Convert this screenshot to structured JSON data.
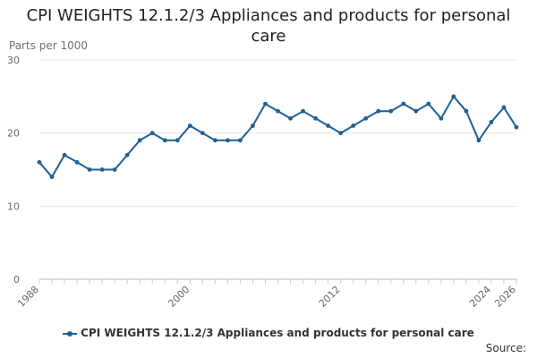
{
  "title": "CPI WEIGHTS 12.1.2/3 Appliances and products for personal care",
  "unit_label": "Parts per 1000",
  "legend_label": "CPI WEIGHTS 12.1.2/3 Appliances and products for personal care",
  "source_label": "Source:",
  "series_color": "#206095",
  "chart_data": {
    "type": "line",
    "title": "CPI WEIGHTS 12.1.2/3 Appliances and products for personal care",
    "ylabel": "Parts per 1000",
    "xlabel": "",
    "ylim": [
      0,
      30
    ],
    "yticks": [
      0,
      10,
      20,
      30
    ],
    "xlim": [
      1988,
      2026
    ],
    "xticks": [
      1988,
      2000,
      2012,
      2024,
      2026
    ],
    "grid": true,
    "series": [
      {
        "name": "CPI WEIGHTS 12.1.2/3 Appliances and products for personal care",
        "x": [
          1988,
          1989,
          1990,
          1991,
          1992,
          1993,
          1994,
          1995,
          1996,
          1997,
          1998,
          1999,
          2000,
          2001,
          2002,
          2003,
          2004,
          2005,
          2006,
          2007,
          2008,
          2009,
          2010,
          2011,
          2012,
          2013,
          2014,
          2015,
          2016,
          2017,
          2018,
          2019,
          2020,
          2021,
          2022,
          2023,
          2024,
          2025,
          2026
        ],
        "values": [
          16,
          14,
          17,
          16,
          15,
          15,
          15,
          17,
          19,
          20,
          19,
          19,
          21,
          20,
          19,
          19,
          19,
          21,
          24,
          23,
          22,
          23,
          22,
          21,
          20,
          21,
          22,
          23,
          23,
          24,
          23,
          24,
          22,
          25,
          23,
          19,
          21.5,
          23.5,
          20.8
        ]
      }
    ]
  }
}
